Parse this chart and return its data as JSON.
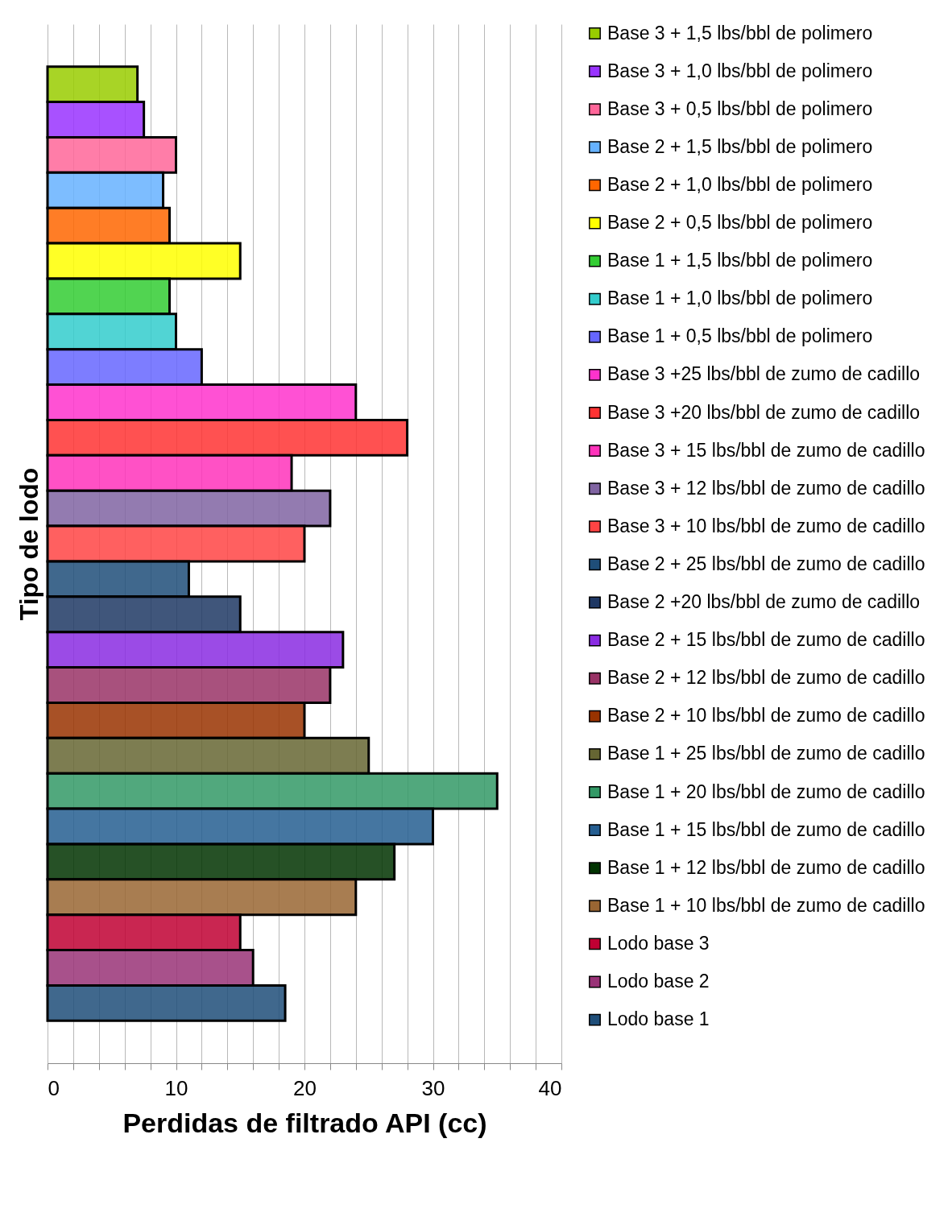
{
  "chart_data": {
    "type": "bar",
    "orientation": "horizontal",
    "xlabel": "Perdidas de filtrado API (cc)",
    "ylabel": "Tipo de lodo",
    "categories": [
      null
    ],
    "xlim": [
      0,
      40
    ],
    "xticks": [
      0,
      {
        "value": 2,
        "label": null
      },
      {
        "value": 4,
        "label": null
      },
      {
        "value": 6,
        "label": null
      },
      {
        "value": 8,
        "label": null
      },
      10,
      {
        "value": 12,
        "label": null
      },
      {
        "value": 14,
        "label": null
      },
      {
        "value": 16,
        "label": null
      },
      {
        "value": 18,
        "label": null
      },
      20,
      {
        "value": 22,
        "label": null
      },
      {
        "value": 24,
        "label": null
      },
      {
        "value": 26,
        "label": null
      },
      {
        "value": 28,
        "label": null
      },
      30,
      {
        "value": 32,
        "label": null
      },
      {
        "value": 34,
        "label": null
      },
      {
        "value": 36,
        "label": null
      },
      {
        "value": 38,
        "label": null
      },
      40
    ],
    "grid": "x",
    "legend": "right",
    "series": [
      {
        "name": "Base 3 + 1,5 lbs/bbl de polimero",
        "color": "#99cc00",
        "values": [
          7
        ]
      },
      {
        "name": "Base 3 + 1,0 lbs/bbl de polimero",
        "color": "#9933ff",
        "values": [
          7.5
        ]
      },
      {
        "name": "Base 3 + 0,5 lbs/bbl de polimero",
        "color": "#ff6699",
        "values": [
          10
        ]
      },
      {
        "name": "Base 2 + 1,5 lbs/bbl de polimero",
        "color": "#66b2ff",
        "values": [
          9
        ]
      },
      {
        "name": "Base 2 + 1,0 lbs/bbl de polimero",
        "color": "#ff6600",
        "values": [
          9.5
        ]
      },
      {
        "name": "Base 2 + 0,5 lbs/bbl de polimero",
        "color": "#ffff00",
        "values": [
          15
        ]
      },
      {
        "name": "Base 1 + 1,5 lbs/bbl de polimero",
        "color": "#33cc33",
        "values": [
          9.5
        ]
      },
      {
        "name": "Base 1 + 1,0 lbs/bbl de polimero",
        "color": "#33cccc",
        "values": [
          10
        ]
      },
      {
        "name": "Base 1 + 0,5 lbs/bbl de polimero",
        "color": "#6666ff",
        "values": [
          12
        ]
      },
      {
        "name": "Base 3 +25 lbs/bbl de zumo de cadillo",
        "color": "#ff33cc",
        "values": [
          24
        ]
      },
      {
        "name": "Base 3 +20 lbs/bbl de zumo de cadillo",
        "color": "#ff3333",
        "values": [
          28
        ]
      },
      {
        "name": "Base 3 + 15 lbs/bbl de zumo de cadillo",
        "color": "#ff33bb",
        "values": [
          19
        ]
      },
      {
        "name": "Base 3 + 12 lbs/bbl de zumo de cadillo",
        "color": "#8064a2",
        "values": [
          22
        ]
      },
      {
        "name": "Base 3 + 10 lbs/bbl de zumo de cadillo",
        "color": "#ff4444",
        "values": [
          20
        ]
      },
      {
        "name": "Base 2 + 25 lbs/bbl de zumo de cadillo",
        "color": "#1f4e79",
        "values": [
          11
        ]
      },
      {
        "name": "Base 2 +20 lbs/bbl de zumo de cadillo",
        "color": "#1f3864",
        "values": [
          15
        ]
      },
      {
        "name": "Base 2 + 15 lbs/bbl de zumo de cadillo",
        "color": "#8a2be2",
        "values": [
          23
        ]
      },
      {
        "name": "Base 2 + 12 lbs/bbl de zumo de cadillo",
        "color": "#993366",
        "values": [
          22
        ]
      },
      {
        "name": "Base 2 + 10 lbs/bbl de zumo de cadillo",
        "color": "#993300",
        "values": [
          20
        ]
      },
      {
        "name": "Base 1 + 25 lbs/bbl de zumo de cadillo",
        "color": "#666633",
        "values": [
          25
        ]
      },
      {
        "name": "Base 1 + 20 lbs/bbl de zumo de cadillo",
        "color": "#339966",
        "values": [
          35
        ]
      },
      {
        "name": "Base 1 + 15 lbs/bbl de zumo de cadillo",
        "color": "#255e91",
        "values": [
          30
        ]
      },
      {
        "name": "Base 1 + 12 lbs/bbl de zumo de cadillo",
        "color": "#003300",
        "values": [
          27
        ]
      },
      {
        "name": "Base 1 + 10 lbs/bbl de zumo de cadillo",
        "color": "#996633",
        "values": [
          24
        ]
      },
      {
        "name": "Lodo base 3",
        "color": "#c00033",
        "values": [
          15
        ]
      },
      {
        "name": "Lodo base 2",
        "color": "#993377",
        "values": [
          16
        ]
      },
      {
        "name": "Lodo base 1",
        "color": "#1f4e79",
        "values": [
          18.5
        ]
      }
    ]
  }
}
